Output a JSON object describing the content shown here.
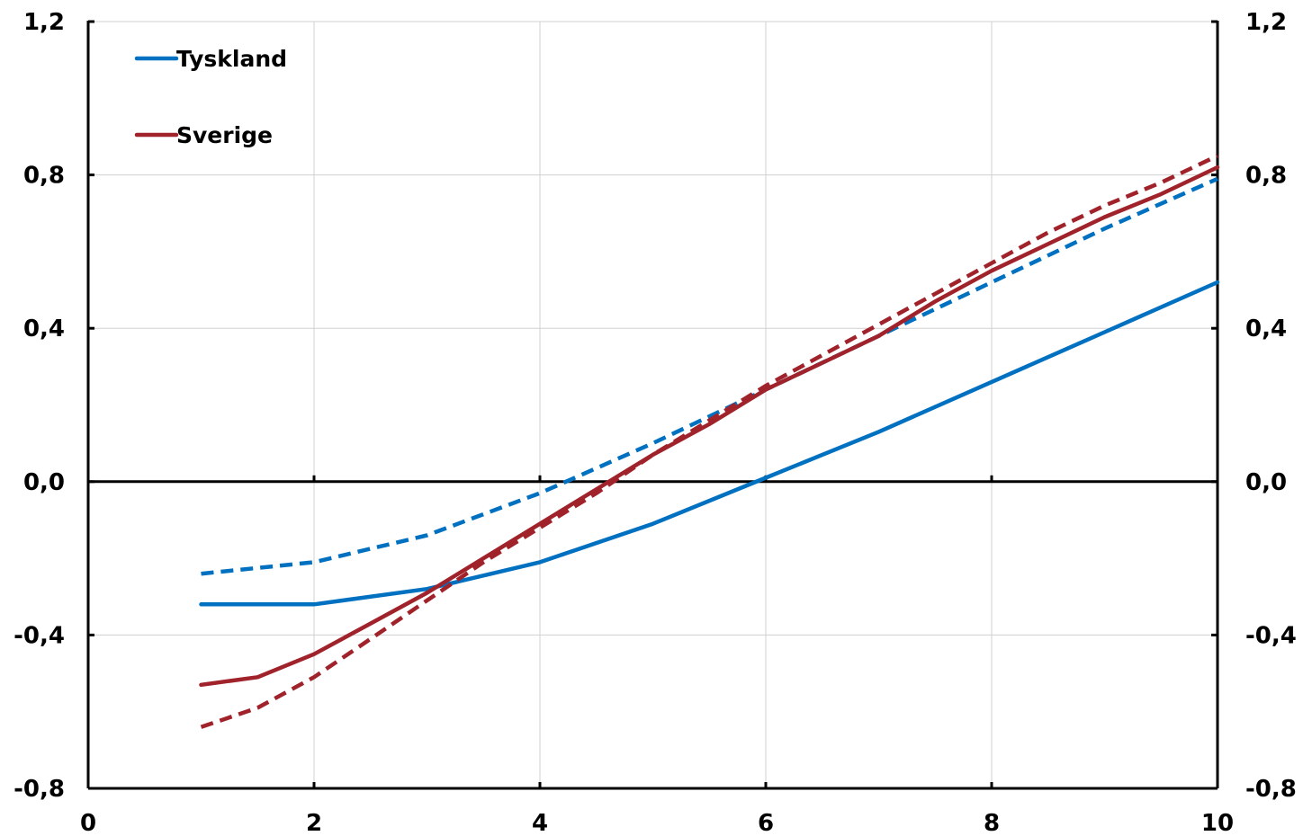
{
  "chart_data": {
    "type": "line",
    "title": "",
    "xlabel": "",
    "ylabel": "",
    "xlim": [
      0,
      10
    ],
    "ylim": [
      -0.8,
      1.2
    ],
    "x_ticks": [
      "0",
      "2",
      "4",
      "6",
      "8",
      "10"
    ],
    "y_ticks": [
      "-0,8",
      "-0,4",
      "0,0",
      "0,4",
      "0,8",
      "1,2"
    ],
    "y_tick_values": [
      -0.8,
      -0.4,
      0.0,
      0.4,
      0.8,
      1.2
    ],
    "x_tick_values": [
      0,
      2,
      4,
      6,
      8,
      10
    ],
    "grid": true,
    "legend_position": "top-left",
    "legend": [
      {
        "label": "Tyskland",
        "color": "#0070C0"
      },
      {
        "label": "Sverige",
        "color": "#A0222A"
      }
    ],
    "series": [
      {
        "name": "Tyskland",
        "color": "#0070C0",
        "style": "solid",
        "x": [
          1,
          2,
          3,
          4,
          5,
          6,
          7,
          8,
          9,
          10
        ],
        "y": [
          -0.32,
          -0.32,
          -0.28,
          -0.21,
          -0.11,
          0.01,
          0.13,
          0.26,
          0.39,
          0.52
        ]
      },
      {
        "color": "#0070C0",
        "style": "dashed",
        "x": [
          1,
          2,
          3,
          4,
          5,
          6,
          7,
          8,
          9,
          10
        ],
        "y": [
          -0.24,
          -0.21,
          -0.14,
          -0.03,
          0.1,
          0.24,
          0.38,
          0.52,
          0.66,
          0.79
        ]
      },
      {
        "name": "Sverige",
        "color": "#A0222A",
        "style": "solid",
        "x": [
          1,
          1.5,
          2,
          2.5,
          3,
          3.5,
          4,
          4.5,
          5,
          5.5,
          6,
          6.5,
          7,
          7.5,
          8,
          8.5,
          9,
          9.5,
          10
        ],
        "y": [
          -0.53,
          -0.51,
          -0.45,
          -0.37,
          -0.29,
          -0.2,
          -0.11,
          -0.02,
          0.07,
          0.15,
          0.24,
          0.31,
          0.38,
          0.47,
          0.55,
          0.62,
          0.69,
          0.75,
          0.82
        ]
      },
      {
        "color": "#A0222A",
        "style": "dashed",
        "x": [
          1,
          1.5,
          2,
          2.5,
          3,
          3.5,
          4,
          4.5,
          5,
          5.5,
          6,
          6.5,
          7,
          7.5,
          8,
          8.5,
          9,
          9.5,
          10
        ],
        "y": [
          -0.64,
          -0.59,
          -0.51,
          -0.41,
          -0.31,
          -0.21,
          -0.12,
          -0.03,
          0.07,
          0.16,
          0.25,
          0.33,
          0.41,
          0.49,
          0.57,
          0.65,
          0.72,
          0.78,
          0.85
        ]
      }
    ]
  }
}
